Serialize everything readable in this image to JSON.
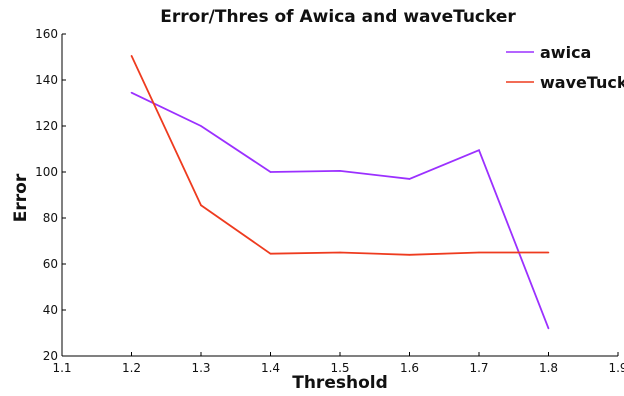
{
  "chart_data": {
    "type": "line",
    "title": "Error/Thres of Awica and waveTucker",
    "xlabel": "Threshold",
    "ylabel": "Error",
    "xlim": [
      1.1,
      1.9
    ],
    "ylim": [
      20,
      160
    ],
    "xticks": [
      "1.1",
      "1.2",
      "1.3",
      "1.4",
      "1.5",
      "1.6",
      "1.7",
      "1.8",
      "1.9"
    ],
    "yticks": [
      "20",
      "40",
      "60",
      "80",
      "100",
      "120",
      "140",
      "160"
    ],
    "x": [
      1.2,
      1.3,
      1.4,
      1.5,
      1.6,
      1.7,
      1.8
    ],
    "series": [
      {
        "name": "awica",
        "color": "#9b30ff",
        "values": [
          134.5,
          120,
          100,
          100.5,
          97,
          109.5,
          32
        ]
      },
      {
        "name": "waveTucker",
        "color": "#ee3b1f",
        "values": [
          150.5,
          85.5,
          64.5,
          65,
          64,
          65,
          65
        ]
      }
    ],
    "grid": false,
    "legend_position": "top-right"
  }
}
